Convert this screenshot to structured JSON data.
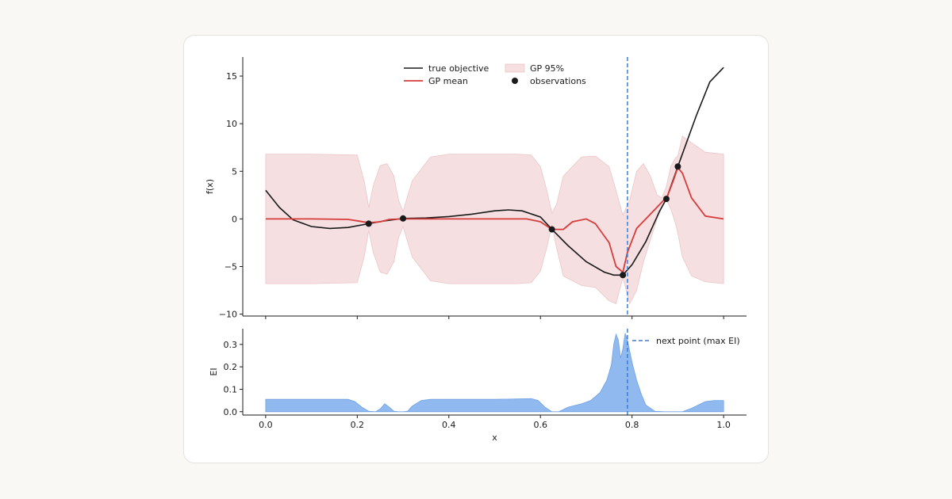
{
  "chart_data": [
    {
      "type": "line",
      "panel": "objective",
      "title": "",
      "xlabel": "",
      "ylabel": "f(x)",
      "xlim": [
        -0.05,
        1.05
      ],
      "ylim": [
        -10.2,
        17.0
      ],
      "grid": false,
      "legend_position": "top-center",
      "yticks": [
        -10,
        -5,
        0,
        5,
        10,
        15
      ],
      "ytick_labels": [
        "−10",
        "−5",
        "0",
        "5",
        "10",
        "15"
      ],
      "xticks": [
        0.0,
        0.2,
        0.4,
        0.6,
        0.8,
        1.0
      ],
      "legend": [
        {
          "label": "true objective",
          "kind": "line",
          "color": "#1a1a1a"
        },
        {
          "label": "GP mean",
          "kind": "line",
          "color": "#d63c3c"
        },
        {
          "label": "GP 95%",
          "kind": "band",
          "color": "#f5dfe0"
        },
        {
          "label": "observations",
          "kind": "marker",
          "color": "#1a1a1a"
        }
      ],
      "series": [
        {
          "name": "true objective",
          "color": "#1a1a1a",
          "x": [
            0.0,
            0.03,
            0.06,
            0.1,
            0.14,
            0.18,
            0.225,
            0.26,
            0.3,
            0.35,
            0.4,
            0.45,
            0.5,
            0.53,
            0.56,
            0.6,
            0.625,
            0.66,
            0.7,
            0.74,
            0.76,
            0.78,
            0.8,
            0.83,
            0.86,
            0.875,
            0.9,
            0.94,
            0.97,
            1.0
          ],
          "y": [
            3.0,
            1.2,
            -0.1,
            -0.8,
            -1.0,
            -0.9,
            -0.5,
            -0.2,
            0.05,
            0.1,
            0.25,
            0.5,
            0.85,
            0.95,
            0.85,
            0.2,
            -1.1,
            -2.8,
            -4.5,
            -5.6,
            -5.9,
            -5.9,
            -4.8,
            -2.4,
            0.8,
            2.1,
            5.5,
            10.8,
            14.4,
            15.9
          ]
        },
        {
          "name": "GP mean",
          "color": "#d63c3c",
          "x": [
            0.0,
            0.1,
            0.18,
            0.2,
            0.225,
            0.25,
            0.27,
            0.3,
            0.35,
            0.5,
            0.57,
            0.6,
            0.625,
            0.65,
            0.67,
            0.7,
            0.72,
            0.75,
            0.765,
            0.78,
            0.79,
            0.81,
            0.84,
            0.87,
            0.875,
            0.89,
            0.9,
            0.91,
            0.93,
            0.96,
            1.0
          ],
          "y": [
            0.0,
            0.0,
            -0.05,
            -0.2,
            -0.4,
            -0.3,
            -0.05,
            0.0,
            0.0,
            0.0,
            0.0,
            -0.3,
            -1.1,
            -1.1,
            -0.3,
            0.0,
            -0.5,
            -2.5,
            -5.0,
            -5.6,
            -3.5,
            -1.0,
            0.5,
            2.0,
            2.1,
            4.0,
            5.4,
            4.8,
            2.2,
            0.3,
            0.0
          ]
        }
      ],
      "band": {
        "name": "GP 95%",
        "color": "#f5dfe0",
        "x": [
          0.0,
          0.1,
          0.2,
          0.215,
          0.225,
          0.235,
          0.25,
          0.265,
          0.28,
          0.29,
          0.3,
          0.32,
          0.36,
          0.4,
          0.5,
          0.55,
          0.58,
          0.6,
          0.615,
          0.625,
          0.635,
          0.65,
          0.69,
          0.72,
          0.75,
          0.765,
          0.78,
          0.795,
          0.81,
          0.825,
          0.84,
          0.855,
          0.865,
          0.875,
          0.885,
          0.895,
          0.9,
          0.91,
          0.93,
          0.96,
          1.0
        ],
        "upper": [
          6.8,
          6.8,
          6.7,
          4.0,
          1.2,
          3.5,
          5.6,
          5.8,
          4.5,
          2.0,
          0.8,
          4.0,
          6.5,
          6.8,
          6.8,
          6.8,
          6.7,
          5.5,
          2.8,
          0.6,
          1.5,
          4.5,
          6.5,
          6.6,
          5.5,
          3.0,
          0.4,
          2.0,
          5.0,
          5.8,
          4.5,
          2.5,
          2.2,
          3.4,
          5.6,
          6.4,
          6.6,
          8.7,
          8.0,
          7.0,
          6.8
        ],
        "lower": [
          -6.8,
          -6.8,
          -6.7,
          -4.0,
          -1.2,
          -3.5,
          -5.6,
          -5.8,
          -4.5,
          -2.0,
          -0.8,
          -4.0,
          -6.5,
          -6.8,
          -6.8,
          -6.8,
          -6.7,
          -5.5,
          -2.8,
          -0.6,
          -3.0,
          -6.0,
          -7.0,
          -7.2,
          -8.6,
          -8.9,
          -6.2,
          -8.9,
          -7.5,
          -4.5,
          -2.2,
          0.0,
          1.2,
          2.0,
          1.0,
          -0.5,
          -1.5,
          -4.0,
          -6.0,
          -6.6,
          -6.8
        ]
      },
      "observations": {
        "name": "observations",
        "color": "#1a1a1a",
        "x": [
          0.225,
          0.3,
          0.625,
          0.78,
          0.875,
          0.9
        ],
        "y": [
          -0.5,
          0.05,
          -1.1,
          -5.9,
          2.1,
          5.5
        ]
      },
      "vline": {
        "x": 0.79,
        "color": "#3a7fd6",
        "style": "dashed"
      }
    },
    {
      "type": "area",
      "panel": "acquisition",
      "title": "",
      "xlabel": "x",
      "ylabel": "EI",
      "xlim": [
        -0.05,
        1.05
      ],
      "ylim": [
        -0.015,
        0.37
      ],
      "grid": false,
      "legend_position": "top-right",
      "yticks": [
        0.0,
        0.1,
        0.2,
        0.3
      ],
      "ytick_labels": [
        "0.0",
        "0.1",
        "0.2",
        "0.3"
      ],
      "xticks": [
        0.0,
        0.2,
        0.4,
        0.6,
        0.8,
        1.0
      ],
      "xtick_labels": [
        "0.0",
        "0.2",
        "0.4",
        "0.6",
        "0.8",
        "1.0"
      ],
      "series": [
        {
          "name": "EI",
          "color": "#8fb9ef",
          "x": [
            0.0,
            0.18,
            0.195,
            0.21,
            0.225,
            0.24,
            0.25,
            0.26,
            0.27,
            0.28,
            0.29,
            0.3,
            0.31,
            0.32,
            0.34,
            0.36,
            0.5,
            0.58,
            0.595,
            0.61,
            0.625,
            0.64,
            0.66,
            0.69,
            0.71,
            0.73,
            0.745,
            0.755,
            0.76,
            0.765,
            0.77,
            0.775,
            0.78,
            0.785,
            0.79,
            0.8,
            0.81,
            0.82,
            0.83,
            0.85,
            0.87,
            0.89,
            0.91,
            0.93,
            0.96,
            0.98,
            1.0
          ],
          "y": [
            0.055,
            0.055,
            0.045,
            0.02,
            0.002,
            0.0,
            0.012,
            0.035,
            0.02,
            0.002,
            0.0,
            0.0,
            0.002,
            0.025,
            0.05,
            0.055,
            0.055,
            0.058,
            0.05,
            0.02,
            0.0,
            0.0,
            0.02,
            0.035,
            0.05,
            0.085,
            0.14,
            0.21,
            0.3,
            0.345,
            0.32,
            0.24,
            0.28,
            0.35,
            0.32,
            0.22,
            0.14,
            0.08,
            0.03,
            0.002,
            0.0,
            0.0,
            0.0,
            0.015,
            0.045,
            0.05,
            0.05
          ]
        }
      ],
      "legend": [
        {
          "label": "next point (max EI)",
          "kind": "dashed-line",
          "color": "#3a7fd6"
        }
      ],
      "vline": {
        "x": 0.79,
        "color": "#3a7fd6",
        "style": "dashed"
      }
    }
  ]
}
